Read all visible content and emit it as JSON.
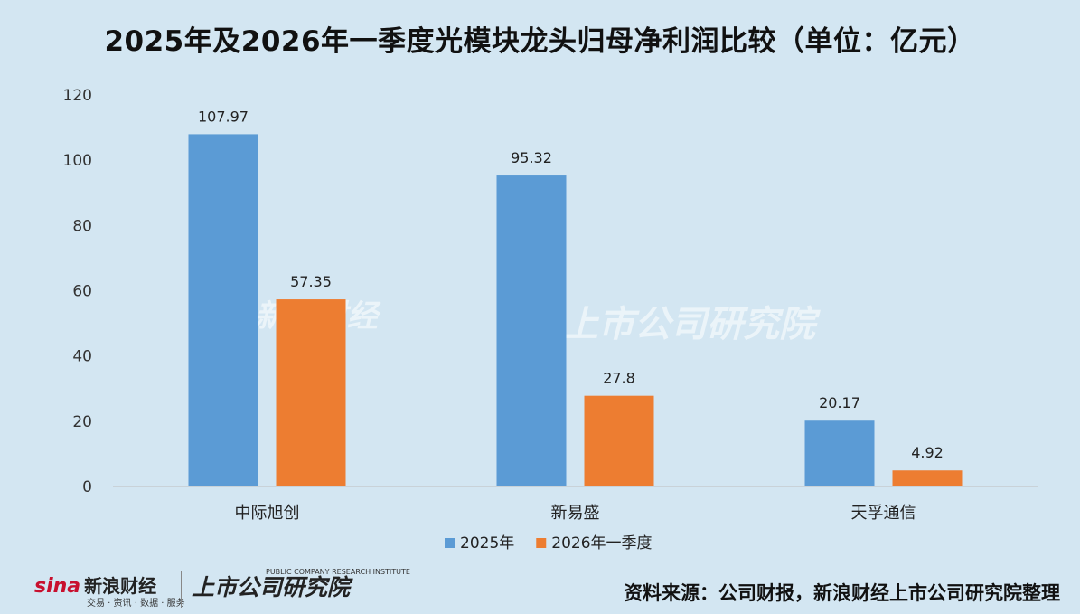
{
  "title": "2025年及2026年一季度光模块龙头归母净利润比较（单位：亿元）",
  "chart_data": {
    "type": "bar",
    "categories": [
      "中际旭创",
      "新易盛",
      "天孚通信"
    ],
    "series": [
      {
        "name": "2025年",
        "values": [
          107.97,
          95.32,
          20.17
        ],
        "labels": [
          "107.97",
          "95.32",
          "20.17"
        ],
        "color": "#5b9bd5"
      },
      {
        "name": "2026年一季度",
        "values": [
          57.35,
          27.8,
          4.92
        ],
        "labels": [
          "57.35",
          "27.8",
          "4.92"
        ],
        "color": "#ed7d31"
      }
    ],
    "ylim": [
      0,
      120
    ],
    "yticks": [
      "0",
      "20",
      "40",
      "60",
      "80",
      "100",
      "120"
    ],
    "legend": "bottom",
    "grid": false
  },
  "footer": {
    "sina_mark": "sina",
    "sina_name": "新浪财经",
    "sina_tagline": "交易 · 资讯 · 数据 · 服务",
    "institute_name": "上市公司研究院",
    "institute_en": "PUBLIC COMPANY RESEARCH INSTITUTE",
    "source": "资料来源：公司财报，新浪财经上市公司研究院整理"
  },
  "watermark": {
    "left": "新浪财经",
    "right": "上市公司研究院"
  }
}
